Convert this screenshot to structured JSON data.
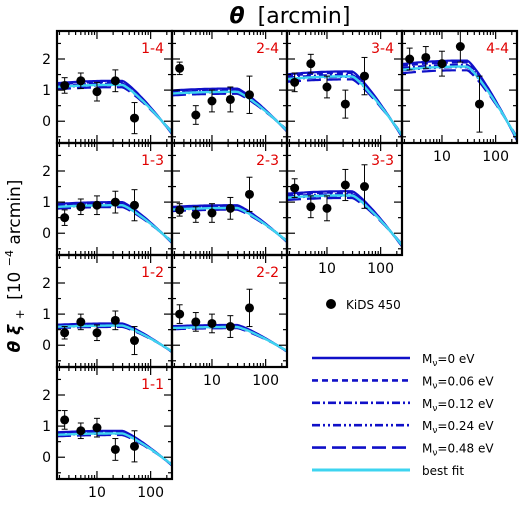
{
  "chart_data": {
    "type": "line",
    "xlabel_symbol": "θ",
    "xlabel_unit": "[arcmin]",
    "ylabel_symbol": "θ ξ",
    "ylabel_sub": "+",
    "ylabel_unit_pre": "[10",
    "ylabel_unit_exp": "−4",
    "ylabel_unit_post": " arcmin]",
    "x_scale": "log",
    "xlim": [
      1.8,
      250
    ],
    "ylim": [
      -0.7,
      2.9
    ],
    "xticks": [
      10,
      100
    ],
    "xtick_labels": [
      "10",
      "100"
    ],
    "yticks": [
      0,
      1,
      2
    ],
    "ytick_labels": [
      "0",
      "1",
      "2"
    ],
    "data_legend": "KiDS 450",
    "model_legend": [
      {
        "label_pre": "M",
        "label_sub": "ν",
        "label_post": "=0 eV",
        "color": "#1010c8",
        "dash": "solid"
      },
      {
        "label_pre": "M",
        "label_sub": "ν",
        "label_post": "=0.06 eV",
        "color": "#1010c8",
        "dash": "short-dash"
      },
      {
        "label_pre": "M",
        "label_sub": "ν",
        "label_post": "=0.12 eV",
        "color": "#1010c8",
        "dash": "dash-dot"
      },
      {
        "label_pre": "M",
        "label_sub": "ν",
        "label_post": "=0.24 eV",
        "color": "#1010c8",
        "dash": "dash-dot-dot"
      },
      {
        "label_pre": "M",
        "label_sub": "ν",
        "label_post": "=0.48 eV",
        "color": "#1010c8",
        "dash": "long-dash"
      },
      {
        "label_pre": "",
        "label_sub": "",
        "label_post": "best fit",
        "color": "#3ed4f0",
        "dash": "solid"
      }
    ],
    "panels": [
      {
        "bin": "1-4",
        "row": 0,
        "col": 0,
        "x": [
          2.5,
          5,
          10,
          22,
          50
        ],
        "y": [
          1.15,
          1.3,
          0.95,
          1.3,
          0.1
        ],
        "yerr": [
          0.25,
          0.25,
          0.3,
          0.35,
          0.5
        ],
        "model_amp": 1.3,
        "xtick_labels_shown": false
      },
      {
        "bin": "2-4",
        "row": 0,
        "col": 1,
        "x": [
          2.5,
          5,
          10,
          22,
          50
        ],
        "y": [
          1.7,
          0.2,
          0.65,
          0.7,
          0.85
        ],
        "yerr": [
          0.2,
          0.3,
          0.35,
          0.4,
          0.6
        ],
        "model_amp": 1.05,
        "xtick_labels_shown": false
      },
      {
        "bin": "3-4",
        "row": 0,
        "col": 2,
        "x": [
          2.5,
          5,
          10,
          22,
          50
        ],
        "y": [
          1.25,
          1.85,
          1.1,
          0.55,
          1.45
        ],
        "yerr": [
          0.3,
          0.3,
          0.35,
          0.45,
          0.6
        ],
        "model_amp": 1.6,
        "xtick_labels_shown": false
      },
      {
        "bin": "4-4",
        "row": 0,
        "col": 3,
        "x": [
          2.5,
          5,
          10,
          22,
          50
        ],
        "y": [
          2.0,
          2.05,
          1.85,
          2.4,
          0.55
        ],
        "yerr": [
          0.35,
          0.35,
          0.4,
          0.5,
          0.9
        ],
        "model_amp": 1.95,
        "xtick_labels_shown": true
      },
      {
        "bin": "1-3",
        "row": 1,
        "col": 0,
        "x": [
          2.5,
          5,
          10,
          22,
          50
        ],
        "y": [
          0.5,
          0.85,
          0.9,
          1.0,
          0.9
        ],
        "yerr": [
          0.25,
          0.25,
          0.3,
          0.35,
          0.5
        ],
        "model_amp": 1.0,
        "xtick_labels_shown": false
      },
      {
        "bin": "2-3",
        "row": 1,
        "col": 1,
        "x": [
          2.5,
          5,
          10,
          22,
          50
        ],
        "y": [
          0.75,
          0.6,
          0.65,
          0.8,
          1.25
        ],
        "yerr": [
          0.2,
          0.25,
          0.3,
          0.35,
          0.55
        ],
        "model_amp": 0.9,
        "xtick_labels_shown": false
      },
      {
        "bin": "3-3",
        "row": 1,
        "col": 2,
        "x": [
          2.5,
          5,
          10,
          22,
          50
        ],
        "y": [
          1.45,
          0.85,
          0.8,
          1.55,
          1.5
        ],
        "yerr": [
          0.3,
          0.35,
          0.4,
          0.5,
          0.7
        ],
        "model_amp": 1.35,
        "xtick_labels_shown": true
      },
      {
        "bin": "1-2",
        "row": 2,
        "col": 0,
        "x": [
          2.5,
          5,
          10,
          22,
          50
        ],
        "y": [
          0.4,
          0.75,
          0.4,
          0.8,
          0.15
        ],
        "yerr": [
          0.2,
          0.25,
          0.25,
          0.3,
          0.45
        ],
        "model_amp": 0.7,
        "xtick_labels_shown": false
      },
      {
        "bin": "2-2",
        "row": 2,
        "col": 1,
        "x": [
          2.5,
          5,
          10,
          22,
          50
        ],
        "y": [
          1.0,
          0.75,
          0.7,
          0.6,
          1.2
        ],
        "yerr": [
          0.3,
          0.3,
          0.3,
          0.35,
          0.6
        ],
        "model_amp": 0.65,
        "xtick_labels_shown": true
      },
      {
        "bin": "1-1",
        "row": 3,
        "col": 0,
        "x": [
          2.5,
          5,
          10,
          22,
          50
        ],
        "y": [
          1.2,
          0.85,
          0.95,
          0.25,
          0.35
        ],
        "yerr": [
          0.3,
          0.25,
          0.3,
          0.35,
          0.5
        ],
        "model_amp": 0.85,
        "xtick_labels_shown": true
      }
    ]
  }
}
